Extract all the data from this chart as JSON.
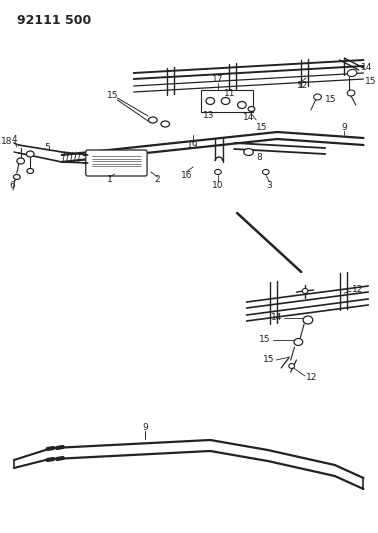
{
  "title": "92111 500",
  "bg_color": "#ffffff",
  "line_color": "#222222",
  "title_fontsize": 9,
  "label_fontsize": 6.5
}
